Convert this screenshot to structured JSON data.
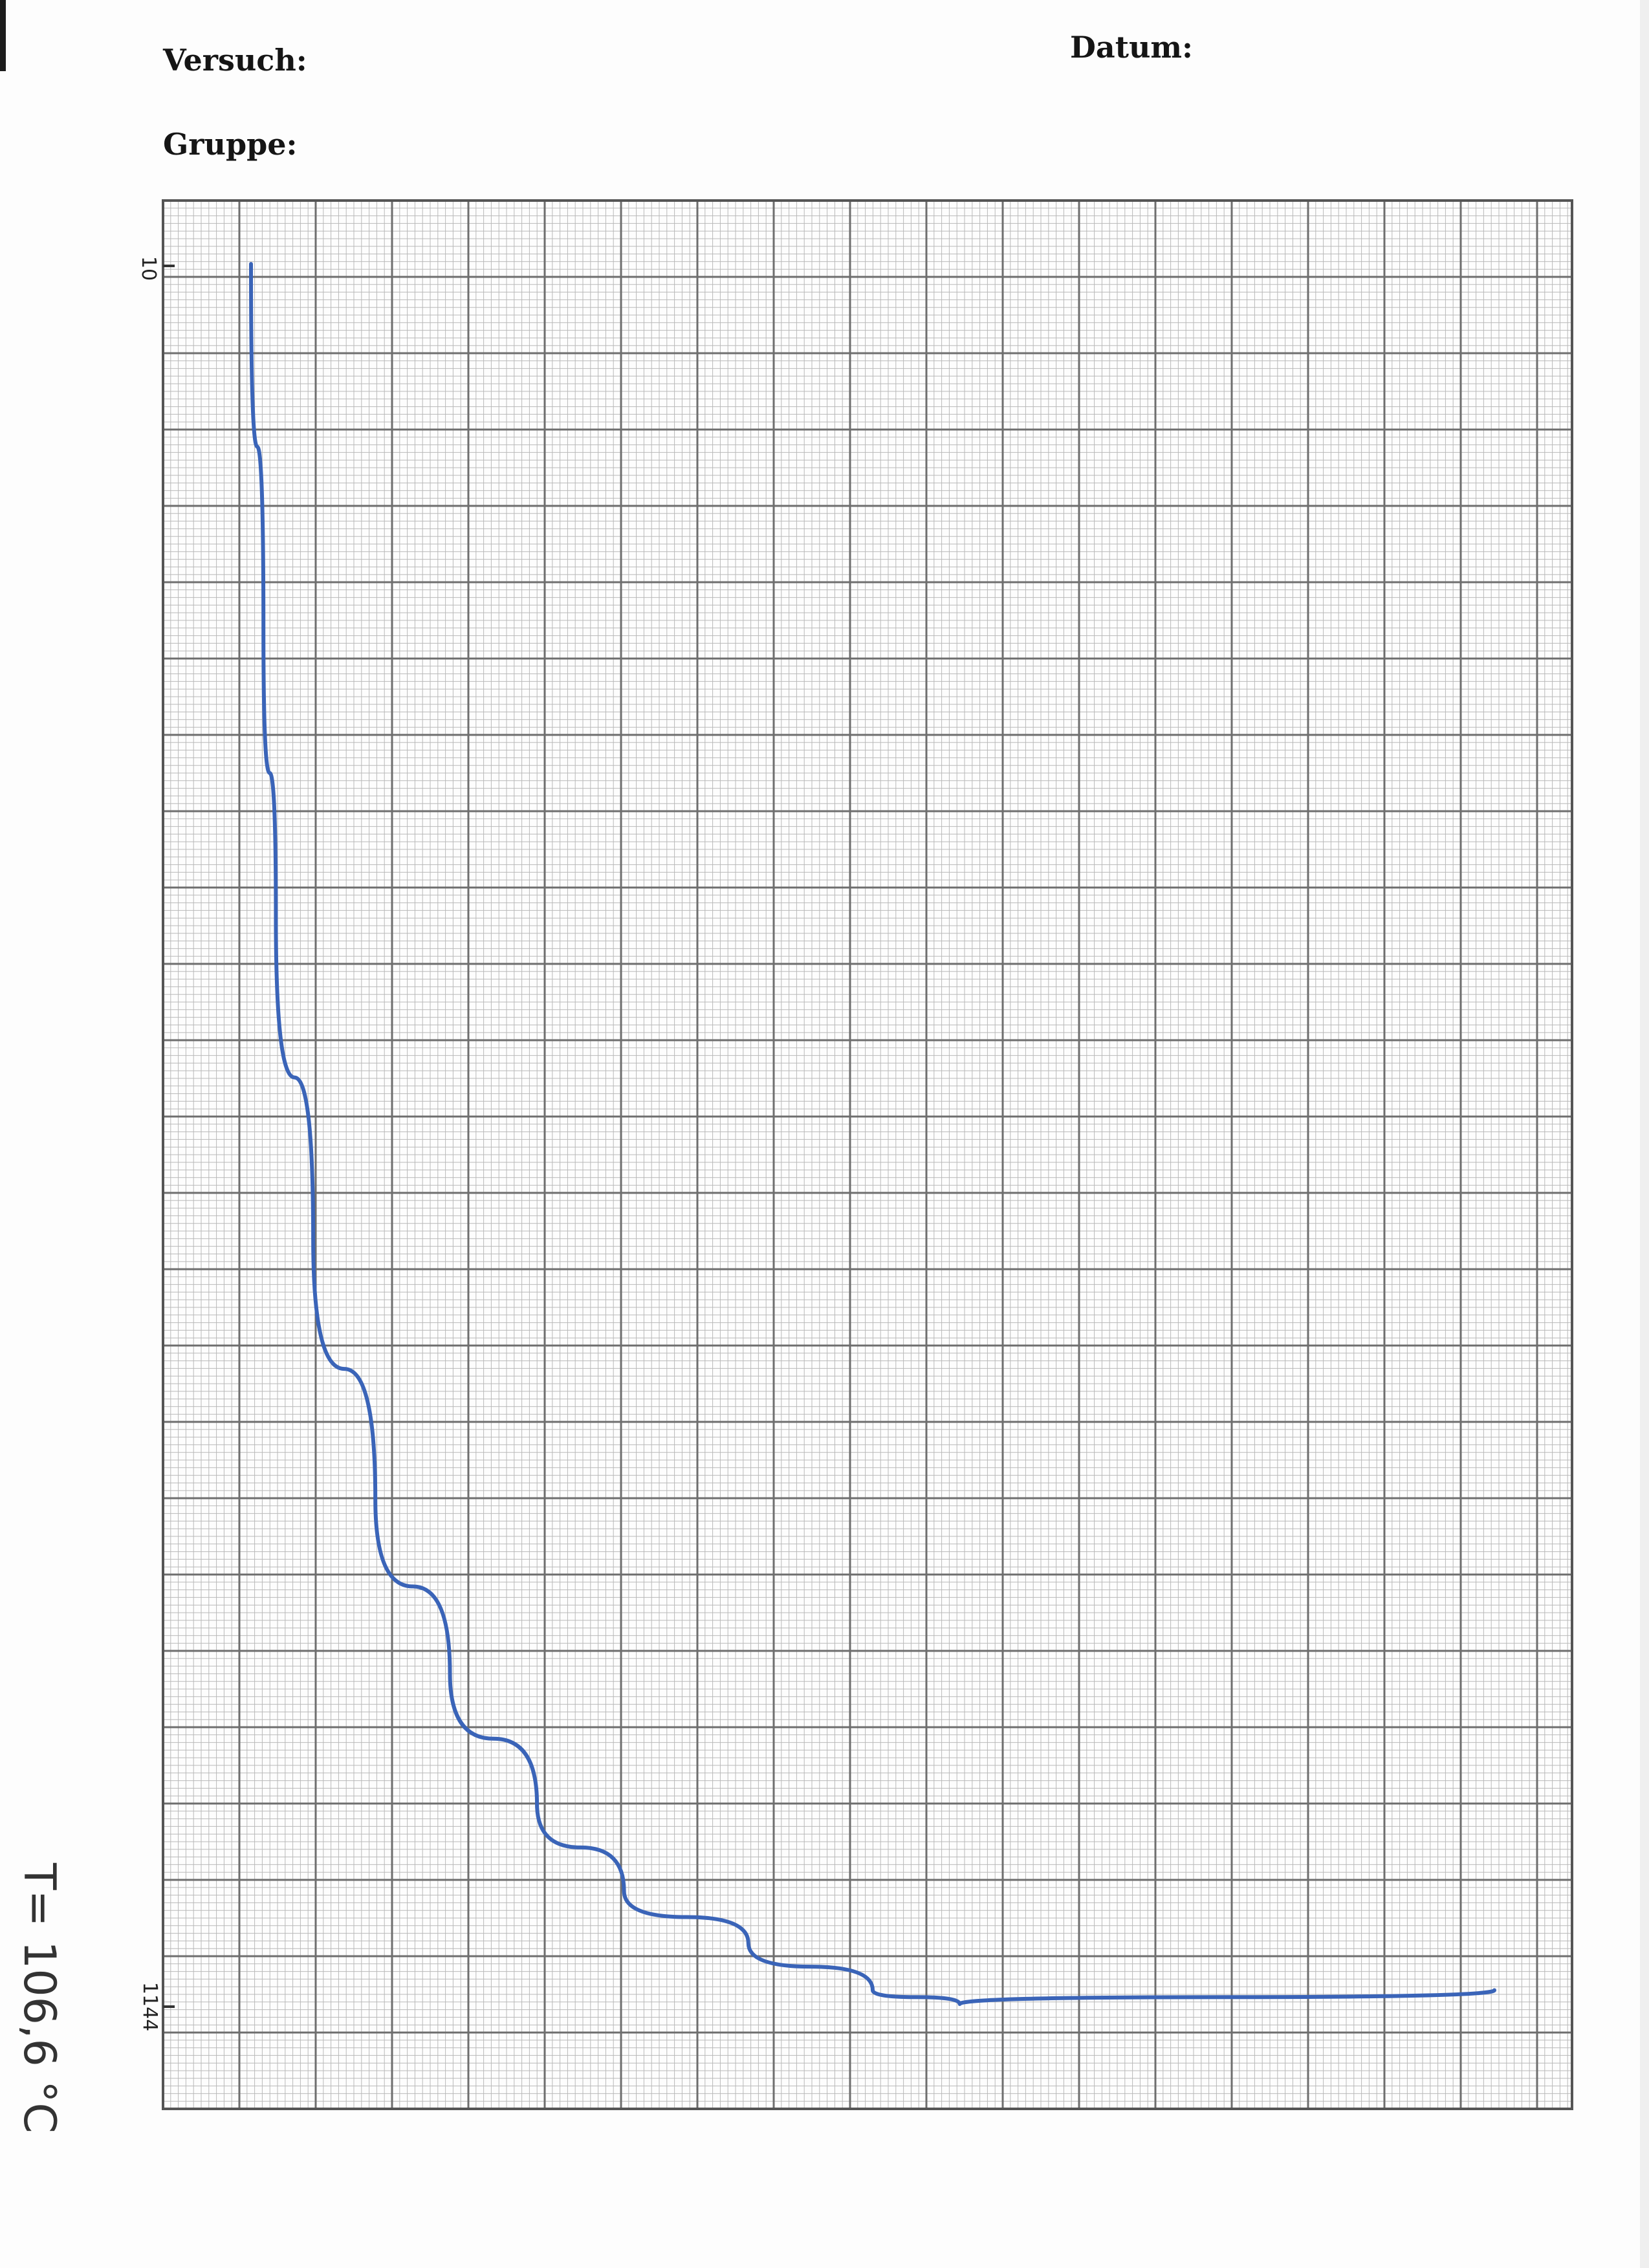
{
  "header": {
    "versuch_label": "Versuch:",
    "gruppe_label": "Gruppe:",
    "datum_label": "Datum:"
  },
  "annotation": {
    "handwritten_note": "T= 106,6 °C"
  },
  "colors": {
    "grid_major": "#6e6e6e",
    "grid_minor": "#b9b9b9",
    "curve": "#3a64b8",
    "paper": "#fdfdfd"
  },
  "chart_data": {
    "type": "line",
    "title": "",
    "xlabel": "",
    "ylabel": "",
    "tick_labels": {
      "top": "10",
      "bottom": "1144"
    },
    "grid": true,
    "series": [
      {
        "points": [
          [
            0.0,
            0.0
          ],
          [
            0.01,
            0.21
          ],
          [
            0.02,
            0.375
          ],
          [
            0.05,
            0.56
          ],
          [
            0.1,
            0.71
          ],
          [
            0.16,
            0.81
          ],
          [
            0.23,
            0.885
          ],
          [
            0.3,
            0.935
          ],
          [
            0.4,
            0.965
          ],
          [
            0.5,
            0.992
          ],
          [
            0.57,
            1.0
          ],
          [
            1.0,
            0.992
          ]
        ]
      }
    ]
  }
}
